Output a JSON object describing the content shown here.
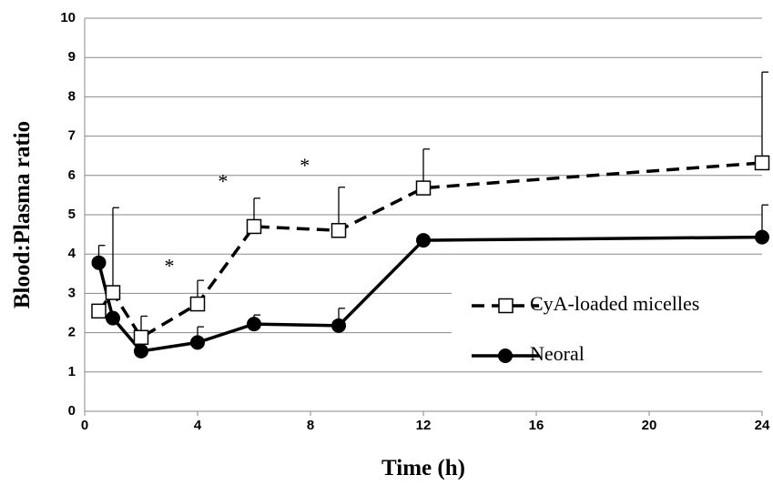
{
  "chart_data": {
    "type": "line",
    "x_label": "Time (h)",
    "y_label": "Blood:Plasma ratio",
    "xlim": [
      0,
      24
    ],
    "xticks": [
      0,
      4,
      8,
      12,
      16,
      20,
      24
    ],
    "ylim": [
      0,
      10
    ],
    "yticks": [
      0,
      1,
      2,
      3,
      4,
      5,
      6,
      7,
      8,
      9,
      10
    ],
    "grid": true,
    "legend": "right",
    "series": [
      {
        "name": "CyA-loaded micelles",
        "color": "#000000",
        "dash": true,
        "marker": "open-square",
        "x": [
          0.5,
          1,
          2,
          4,
          6,
          9,
          12,
          24
        ],
        "values": [
          2.55,
          3.02,
          1.88,
          2.73,
          4.7,
          4.6,
          5.68,
          6.32
        ],
        "errors": [
          null,
          2.16,
          0.54,
          0.6,
          0.72,
          1.1,
          0.99,
          2.31
        ]
      },
      {
        "name": "Neoral",
        "color": "#000000",
        "dash": false,
        "marker": "filled-circle",
        "x": [
          0.5,
          1,
          2,
          4,
          6,
          9,
          12,
          24
        ],
        "values": [
          3.78,
          2.37,
          1.53,
          1.75,
          2.22,
          2.18,
          4.35,
          4.43
        ],
        "errors": [
          0.44,
          null,
          null,
          0.4,
          0.23,
          0.44,
          null,
          0.82
        ]
      }
    ],
    "annotations": [
      {
        "text": "*",
        "x": 3,
        "y": 3.65
      },
      {
        "text": "*",
        "x": 4.9,
        "y": 5.8
      },
      {
        "text": "*",
        "x": 7.8,
        "y": 6.2
      }
    ]
  }
}
